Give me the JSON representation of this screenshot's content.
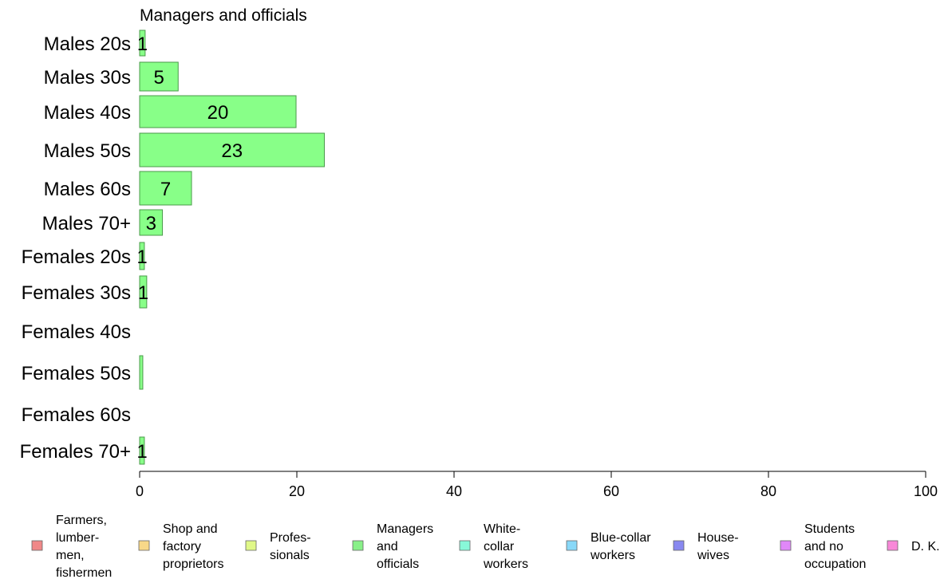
{
  "chart_data": {
    "type": "bar",
    "orientation": "horizontal",
    "title": "Managers and officials",
    "categories": [
      "Males 20s",
      "Males 30s",
      "Males 40s",
      "Males 50s",
      "Males 60s",
      "Males 70+",
      "Females 20s",
      "Females 30s",
      "Females 40s",
      "Females 50s",
      "Females 60s",
      "Females 70+"
    ],
    "values": [
      0.7,
      4.9,
      19.9,
      23.5,
      6.6,
      2.9,
      0.6,
      0.9,
      0,
      0.4,
      0,
      0.6
    ],
    "data_labels": [
      "1",
      "5",
      "20",
      "23",
      "7",
      "3",
      "1",
      "1",
      "",
      "",
      "",
      "1"
    ],
    "xlim": [
      0,
      100
    ],
    "x_ticks": [
      "0",
      "20",
      "40",
      "60",
      "80",
      "100"
    ],
    "bar_color": "#88ff88",
    "bar_stroke": "#4a9a4a",
    "grid": false,
    "legend": {
      "placement": "bottom",
      "items": [
        {
          "lines": [
            "Farmers,",
            "lumber-",
            "men,",
            "fishermen"
          ],
          "color": "#f08888"
        },
        {
          "lines": [
            "Shop and",
            "factory",
            "proprietors"
          ],
          "color": "#f8d888"
        },
        {
          "lines": [
            "Profes-",
            "sionals"
          ],
          "color": "#e0f888"
        },
        {
          "lines": [
            "Managers",
            "and",
            "officials"
          ],
          "color": "#88f088"
        },
        {
          "lines": [
            "White-",
            "collar",
            "workers"
          ],
          "color": "#88f8d8"
        },
        {
          "lines": [
            "Blue-collar",
            "workers"
          ],
          "color": "#88d8f8"
        },
        {
          "lines": [
            "House-",
            "wives"
          ],
          "color": "#8888f0"
        },
        {
          "lines": [
            "Students",
            "and no",
            "occupation"
          ],
          "color": "#e088f8"
        },
        {
          "lines": [
            "D. K."
          ],
          "color": "#f888d8"
        }
      ]
    }
  }
}
